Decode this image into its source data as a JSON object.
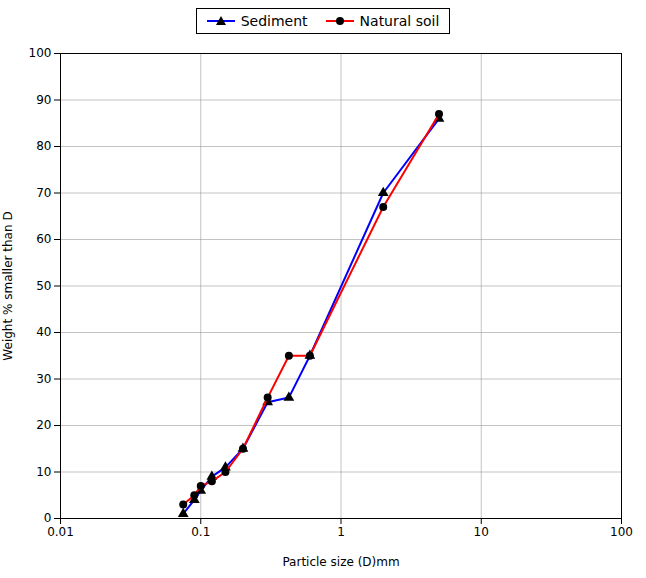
{
  "chart_data": {
    "type": "line",
    "x": [
      0.075,
      0.09,
      0.1,
      0.12,
      0.15,
      0.2,
      0.3,
      0.425,
      0.6,
      2.0,
      5.0
    ],
    "series": [
      {
        "name": "Sediment",
        "color": "#0000ff",
        "marker": "triangle",
        "values": [
          1,
          4,
          6,
          9,
          11,
          15,
          25,
          26,
          35,
          70,
          86
        ]
      },
      {
        "name": "Natural soil",
        "color": "#ff0000",
        "marker": "circle",
        "values": [
          3,
          5,
          7,
          8,
          10,
          15,
          26,
          35,
          35,
          67,
          87
        ]
      }
    ],
    "x_label": "Particle size (D)mm",
    "y_label": "Weight % smaller than D",
    "log": "x",
    "xlim": [
      0.01,
      100
    ],
    "xticks": [
      0.01,
      0.1,
      1,
      10,
      100
    ],
    "ylim": [
      0,
      100
    ],
    "yticks": [
      0,
      10,
      20,
      30,
      40,
      50,
      60,
      70,
      80,
      90,
      100
    ],
    "grid": true,
    "legend": "top"
  }
}
